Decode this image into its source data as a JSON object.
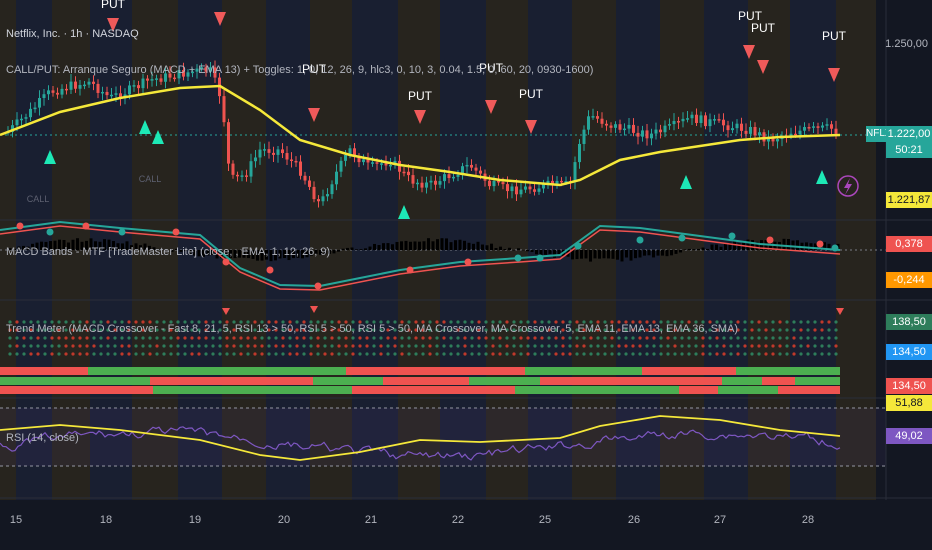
{
  "symbol_title": "Netflix, Inc. · 1h · NASDAQ",
  "indicator_titles": {
    "callput": "CALL/PUT: Arranque Seguro (MACD + EMA 13) + Toggles: 1, 0, 12, 26, 9, hlc3, 0, 10, 3, 0.04, 1.5, 0, 60, 20, 0930-1600)",
    "macd_bands": "MACD Bands - MTF [TradeMaster Lite] (close, , EMA, 1, 12, 26, 9)",
    "trend_meter": "Trend Meter (MACD Crossover - Fast 8, 21, 5, RSI 13 > 50, RSI 5 > 50, RSI 5 > 50, MA Crossover, MA Crossover, 5, EMA 11, EMA 13, EMA 36, SMA)",
    "rsi": "RSI (14, close)"
  },
  "ticker_tag": "NFLX",
  "price_axis": {
    "tick_1250": "1.250,00",
    "last_price": "1.222,00",
    "countdown": "50:21",
    "ema_value": "1.221,87"
  },
  "macd_axis": [
    "0,378",
    "-0,244"
  ],
  "trend_axis": [
    "138,50",
    "134,50",
    "134,50"
  ],
  "rsi_axis": [
    "51,88",
    "49,02"
  ],
  "signal_labels": {
    "put": "PUT",
    "call": "CALL"
  },
  "dates": [
    "15",
    "18",
    "19",
    "20",
    "21",
    "22",
    "25",
    "26",
    "27",
    "28"
  ],
  "colors": {
    "background": "#131722",
    "session_band": "#3a2f1c",
    "up": "#26a69a",
    "down": "#ef5350",
    "ema": "#f5e83a",
    "put_marker": "#f05a5a",
    "call_marker": "#1de9b6",
    "rsi_line": "#7e57c2",
    "rsi_ma": "#f5e83a",
    "green_bar": "#4caf50",
    "red_bar": "#ef5350"
  }
}
